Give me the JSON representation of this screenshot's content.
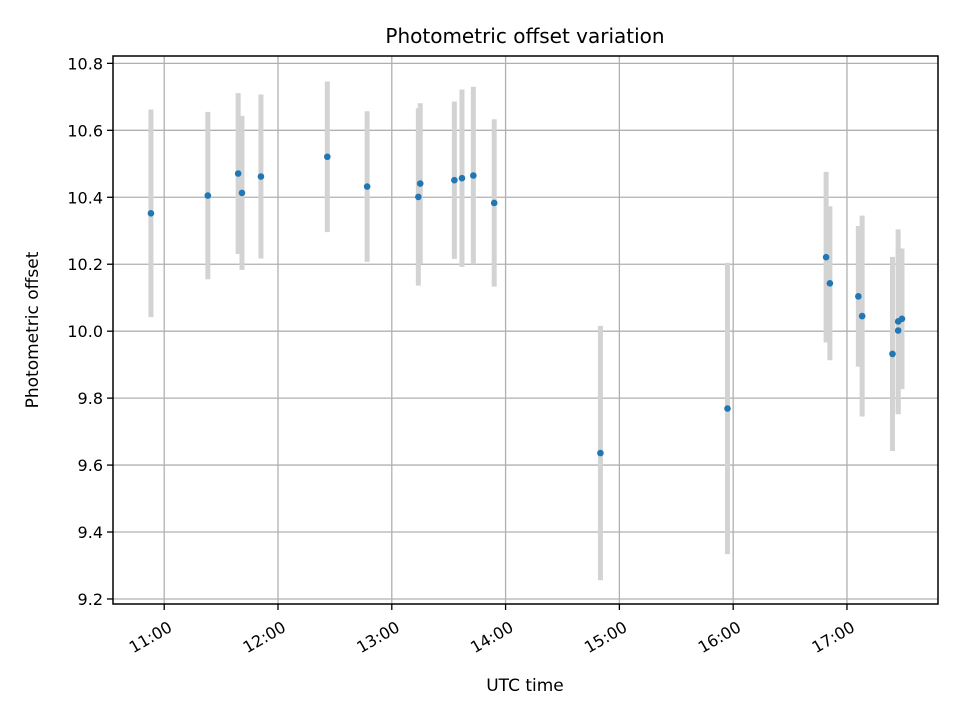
{
  "chart_data": {
    "type": "scatter",
    "title": "Photometric offset variation",
    "xlabel": "UTC time",
    "ylabel": "Photometric offset",
    "x_ticks": [
      "11:00",
      "12:00",
      "13:00",
      "14:00",
      "15:00",
      "16:00",
      "17:00"
    ],
    "y_ticks": [
      "9.2",
      "9.4",
      "9.6",
      "9.8",
      "10.0",
      "10.2",
      "10.4",
      "10.6",
      "10.8"
    ],
    "ylim": [
      9.185,
      10.822
    ],
    "xlim": [
      "10:33",
      "17:48"
    ],
    "grid": true,
    "marker_color": "#1f77b4",
    "errorbar_color": "#d3d3d3",
    "points": [
      {
        "x": "10:53",
        "y": 10.352,
        "err": 0.31
      },
      {
        "x": "11:23",
        "y": 10.405,
        "err": 0.25
      },
      {
        "x": "11:39",
        "y": 10.471,
        "err": 0.24
      },
      {
        "x": "11:41",
        "y": 10.413,
        "err": 0.23
      },
      {
        "x": "11:51",
        "y": 10.462,
        "err": 0.245
      },
      {
        "x": "12:26",
        "y": 10.521,
        "err": 0.225
      },
      {
        "x": "12:47",
        "y": 10.432,
        "err": 0.225
      },
      {
        "x": "13:14",
        "y": 10.401,
        "err": 0.265
      },
      {
        "x": "13:15",
        "y": 10.441,
        "err": 0.24
      },
      {
        "x": "13:33",
        "y": 10.451,
        "err": 0.235
      },
      {
        "x": "13:37",
        "y": 10.457,
        "err": 0.265
      },
      {
        "x": "13:43",
        "y": 10.465,
        "err": 0.265
      },
      {
        "x": "13:54",
        "y": 10.383,
        "err": 0.25
      },
      {
        "x": "14:50",
        "y": 9.636,
        "err": 0.38
      },
      {
        "x": "15:57",
        "y": 9.769,
        "err": 0.435
      },
      {
        "x": "16:49",
        "y": 10.221,
        "err": 0.255
      },
      {
        "x": "16:51",
        "y": 10.143,
        "err": 0.23
      },
      {
        "x": "17:06",
        "y": 10.104,
        "err": 0.21
      },
      {
        "x": "17:08",
        "y": 10.045,
        "err": 0.3
      },
      {
        "x": "17:24",
        "y": 9.932,
        "err": 0.29
      },
      {
        "x": "17:27",
        "y": 10.029,
        "err": 0.275
      },
      {
        "x": "17:27",
        "y": 10.002,
        "err": 0.25
      },
      {
        "x": "17:29",
        "y": 10.037,
        "err": 0.21
      }
    ]
  }
}
